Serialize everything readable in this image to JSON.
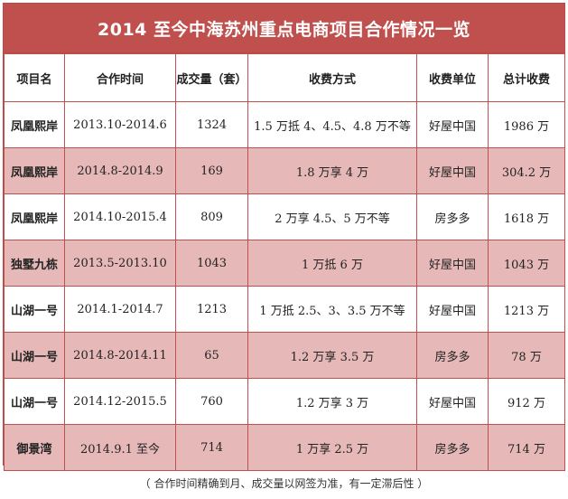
{
  "title": "2014 至今中海苏州重点电商项目合作情况一览",
  "headers": [
    "项目名",
    "合作时间",
    "成交量（套）",
    "收费方式",
    "收费单位",
    "总计收费"
  ],
  "rows": [
    [
      "凤凰熙岸",
      "2013.10-2014.6",
      "1324",
      "1.5 万抵 4、4.5、4.8 万不等",
      "好屋中国",
      "1986 万"
    ],
    [
      "凤凰熙岸",
      "2014.8-2014.9",
      "169",
      "1.8 万享 4 万",
      "好屋中国",
      "304.2 万"
    ],
    [
      "凤凰熙岸",
      "2014.10-2015.4",
      "809",
      "2 万享 4.5、5 万不等",
      "房多多",
      "1618 万"
    ],
    [
      "独墅九栋",
      "2013.5-2013.10",
      "1043",
      "1 万抵 6 万",
      "好屋中国",
      "1043 万"
    ],
    [
      "山湖一号",
      "2014.1-2014.7",
      "1213",
      "1 万抵 2.5、3、3.5 万不等",
      "好屋中国",
      "1213 万"
    ],
    [
      "山湖一号",
      "2014.8-2014.11",
      "65",
      "1.2 万享 3.5 万",
      "房多多",
      "78 万"
    ],
    [
      "山湖一号",
      "2014.12-2015.5",
      "760",
      "1.2 万享 3 万",
      "好屋中国",
      "912 万"
    ],
    [
      "御景湾",
      "2014.9.1 至今",
      "714",
      "1 万享 2.5 万",
      "房多多",
      "714 万"
    ]
  ],
  "footnote": "（ 合作时间精确到月、成交量以网签为准，有一定滞后性 ）",
  "colors": {
    "header_bg": "#c0504d",
    "alt_row_bg": "#e6b9b8",
    "border": "#c0504d"
  }
}
